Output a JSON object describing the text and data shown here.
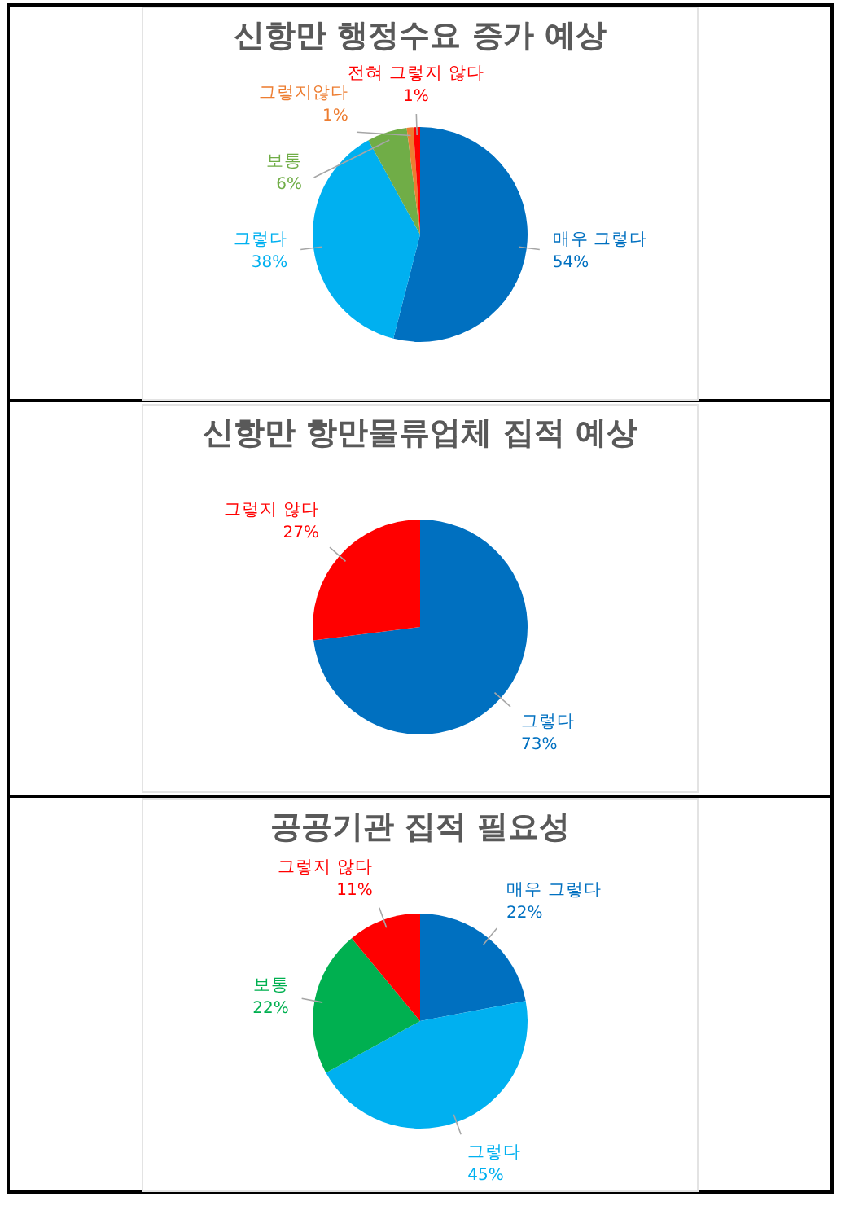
{
  "chart_data": [
    {
      "type": "pie",
      "title": "신항만 행정수요 증가 예상",
      "categories": [
        "매우 그렇다",
        "그렇다",
        "보통",
        "그렇지않다",
        "전혀 그렇지 않다"
      ],
      "values": [
        54,
        38,
        6,
        1,
        1
      ],
      "colors": [
        "#0070c0",
        "#00b0f0",
        "#70ad47",
        "#ed7d31",
        "#ff0000"
      ],
      "value_labels": [
        "54%",
        "38%",
        "6%",
        "1%",
        "1%"
      ]
    },
    {
      "type": "pie",
      "title": "신항만 항만물류업체 집적 예상",
      "categories": [
        "그렇다",
        "그렇지 않다"
      ],
      "values": [
        73,
        27
      ],
      "colors": [
        "#0070c0",
        "#ff0000"
      ],
      "value_labels": [
        "73%",
        "27%"
      ]
    },
    {
      "type": "pie",
      "title": "공공기관 집적 필요성",
      "categories": [
        "매우 그렇다",
        "그렇다",
        "보통",
        "그렇지 않다"
      ],
      "values": [
        22,
        45,
        22,
        11
      ],
      "colors": [
        "#0070c0",
        "#00b0f0",
        "#00b050",
        "#ff0000"
      ],
      "value_labels": [
        "22%",
        "45%",
        "22%",
        "11%"
      ]
    }
  ]
}
